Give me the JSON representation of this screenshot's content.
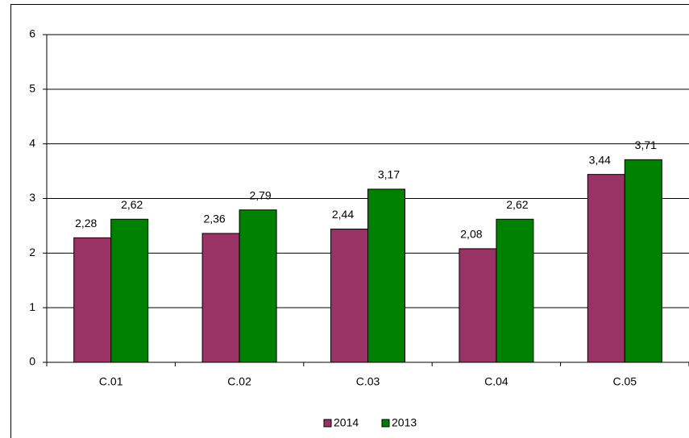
{
  "chart_data": {
    "type": "bar",
    "categories": [
      "C.01",
      "C.02",
      "C.03",
      "C.04",
      "C.05"
    ],
    "series": [
      {
        "name": "2014",
        "color": "#993366",
        "values": [
          2.28,
          2.36,
          2.44,
          2.08,
          3.44
        ],
        "value_labels": [
          "2,28",
          "2,36",
          "2,44",
          "2,08",
          "3,44"
        ]
      },
      {
        "name": "2013",
        "color": "#008000",
        "values": [
          2.62,
          2.79,
          3.17,
          2.62,
          3.71
        ],
        "value_labels": [
          "2,62",
          "2,79",
          "3,17",
          "2,62",
          "3,71"
        ]
      }
    ],
    "ylim": [
      0,
      6
    ],
    "yticks": [
      0,
      1,
      2,
      3,
      4,
      5,
      6
    ],
    "grid": true,
    "legend": "bottom"
  }
}
